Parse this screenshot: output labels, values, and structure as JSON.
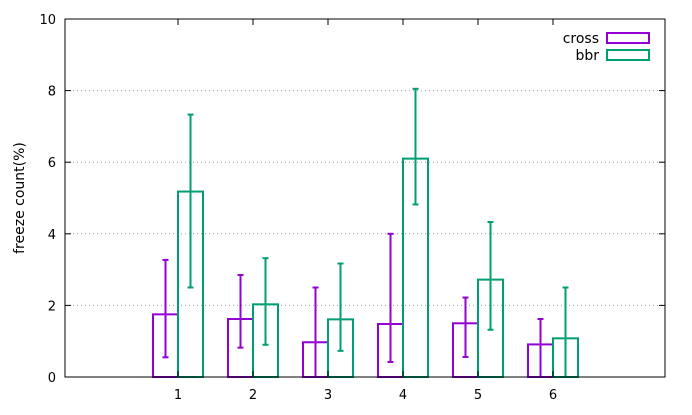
{
  "chart_data": {
    "type": "bar",
    "categories": [
      "1",
      "2",
      "3",
      "4",
      "5",
      "6"
    ],
    "ylabel": "freeze count(%)",
    "xlabel": "",
    "ylim": [
      0,
      10
    ],
    "yticks": [
      0,
      2,
      4,
      6,
      8,
      10
    ],
    "grid": true,
    "legend_position": "top-right",
    "series": [
      {
        "name": "cross",
        "color": "#9400d3",
        "values": [
          1.75,
          1.62,
          0.97,
          1.48,
          1.5,
          0.91
        ],
        "err_low": [
          0.55,
          0.82,
          0.0,
          0.42,
          0.56,
          0.0
        ],
        "err_high": [
          3.27,
          2.85,
          2.5,
          4.0,
          2.22,
          1.62
        ]
      },
      {
        "name": "bbr",
        "color": "#009e73",
        "values": [
          5.18,
          2.03,
          1.61,
          6.1,
          2.72,
          1.08
        ],
        "err_low": [
          2.5,
          0.9,
          0.73,
          4.82,
          1.32,
          0.0
        ],
        "err_high": [
          7.33,
          3.32,
          3.17,
          8.05,
          4.33,
          2.5
        ]
      }
    ]
  }
}
